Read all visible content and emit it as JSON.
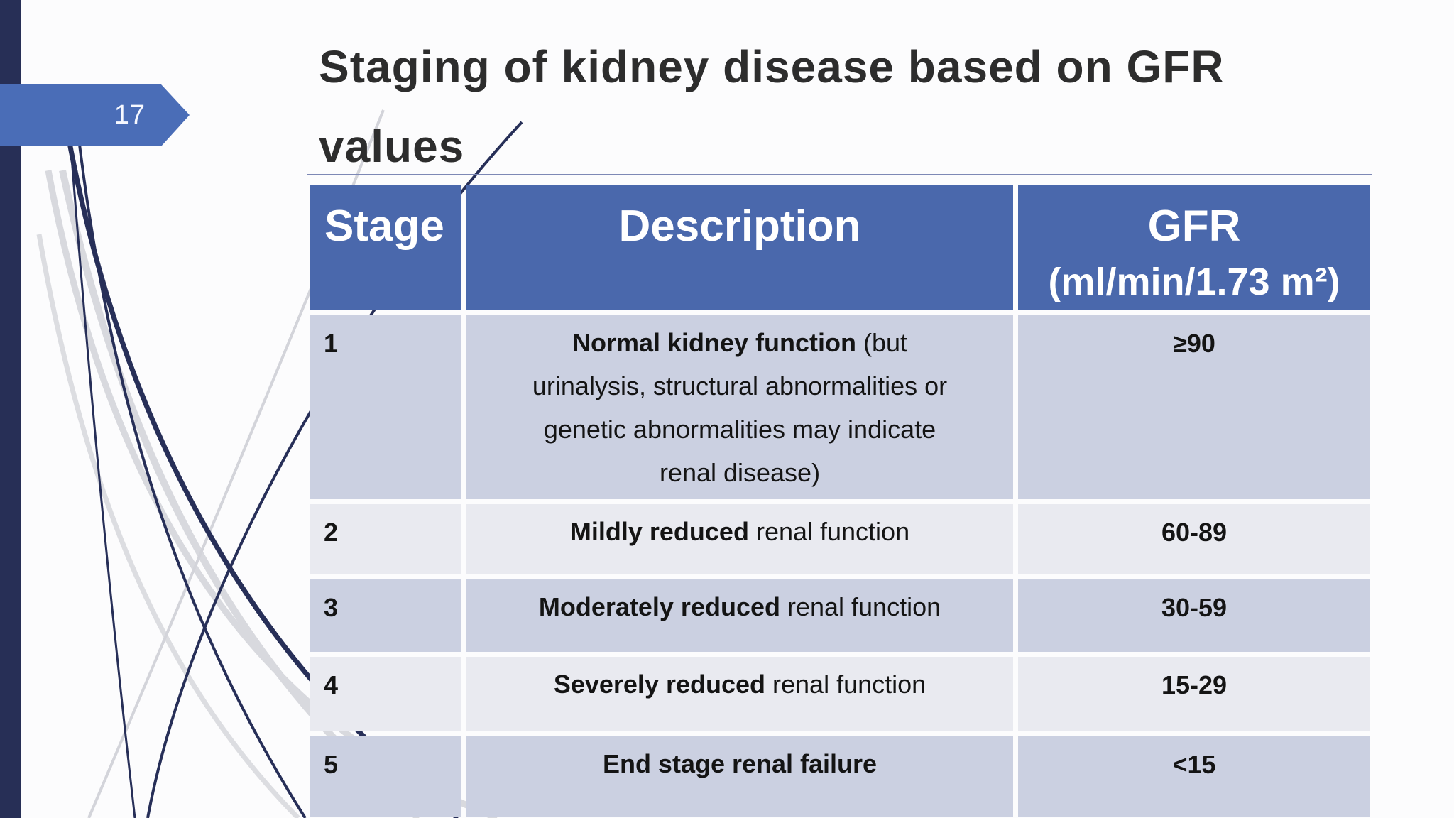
{
  "page": {
    "number": "17"
  },
  "title": {
    "line1": "Staging of kidney disease based on GFR",
    "line2": "values"
  },
  "colors": {
    "accent_bar": "#272f56",
    "banner_blue": "#4a6db7",
    "header_blue": "#4a68ac",
    "row_lavender": "#cbd0e1",
    "row_light": "#e9eaf0",
    "title_text": "#2d2d2d",
    "underline": "#7d88b5"
  },
  "table": {
    "headers": {
      "stage": "Stage",
      "description": "Description",
      "gfr_line1": "GFR",
      "gfr_line2": "(ml/min/1.73 m²)"
    },
    "rows": [
      {
        "stage": "1",
        "gfr": "≥90",
        "desc_lines": [
          [
            {
              "bold": true,
              "text": "Normal kidney function "
            },
            {
              "bold": false,
              "text": "(but"
            }
          ],
          [
            {
              "bold": false,
              "text": "urinalysis, structural abnormalities or"
            }
          ],
          [
            {
              "bold": false,
              "text": "genetic abnormalities may indicate"
            }
          ],
          [
            {
              "bold": false,
              "text": "renal disease)"
            }
          ]
        ]
      },
      {
        "stage": "2",
        "gfr": "60-89",
        "desc_lines": [
          [
            {
              "bold": true,
              "text": "Mildly reduced "
            },
            {
              "bold": false,
              "text": "renal function"
            }
          ]
        ]
      },
      {
        "stage": "3",
        "gfr": "30-59",
        "desc_lines": [
          [
            {
              "bold": true,
              "text": "Moderately reduced "
            },
            {
              "bold": false,
              "text": "renal function"
            }
          ]
        ]
      },
      {
        "stage": "4",
        "gfr": "15-29",
        "desc_lines": [
          [
            {
              "bold": true,
              "text": "Severely reduced "
            },
            {
              "bold": false,
              "text": "renal function"
            }
          ]
        ]
      },
      {
        "stage": "5",
        "gfr": "<15",
        "desc_lines": [
          [
            {
              "bold": true,
              "text": "End stage renal failure"
            }
          ]
        ]
      }
    ]
  }
}
